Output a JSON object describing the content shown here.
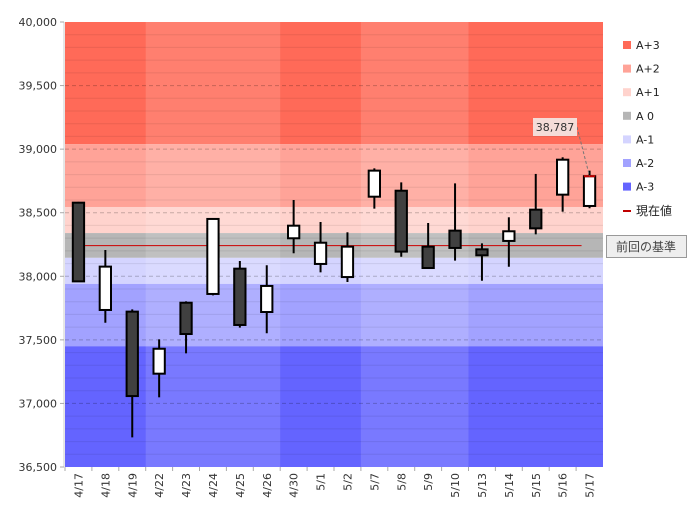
{
  "chart_data": {
    "type": "candlestick",
    "title": "",
    "xlabel": "",
    "ylabel": "",
    "ylim": [
      36500,
      40000
    ],
    "y_ticks": [
      36500,
      37000,
      37500,
      38000,
      38500,
      39000,
      39500,
      40000
    ],
    "y_tick_labels": [
      "36,500",
      "37,000",
      "37,500",
      "38,000",
      "38,500",
      "39,000",
      "39,500",
      "40,000"
    ],
    "grid": true,
    "categories": [
      "4/17",
      "4/18",
      "4/19",
      "4/22",
      "4/23",
      "4/24",
      "4/25",
      "4/26",
      "4/30",
      "5/1",
      "5/2",
      "5/7",
      "5/8",
      "5/9",
      "5/10",
      "5/13",
      "5/14",
      "5/15",
      "5/16",
      "5/17"
    ],
    "week_groups": [
      [
        0,
        2
      ],
      [
        3,
        7
      ],
      [
        8,
        10
      ],
      [
        11,
        14
      ],
      [
        15,
        19
      ]
    ],
    "ohlc": [
      {
        "o": 38579,
        "h": 38585,
        "l": 37955,
        "c": 37960
      },
      {
        "o": 37735,
        "h": 38207,
        "l": 37635,
        "c": 38076
      },
      {
        "o": 37722,
        "h": 37740,
        "l": 36733,
        "c": 37058
      },
      {
        "o": 37234,
        "h": 37504,
        "l": 37048,
        "c": 37430
      },
      {
        "o": 37792,
        "h": 37803,
        "l": 37394,
        "c": 37546
      },
      {
        "o": 37861,
        "h": 38455,
        "l": 37850,
        "c": 38451
      },
      {
        "o": 38060,
        "h": 38120,
        "l": 37596,
        "c": 37617
      },
      {
        "o": 37719,
        "h": 38087,
        "l": 37552,
        "c": 37924
      },
      {
        "o": 38299,
        "h": 38600,
        "l": 38181,
        "c": 38398
      },
      {
        "o": 38097,
        "h": 38427,
        "l": 38031,
        "c": 38264
      },
      {
        "o": 37994,
        "h": 38346,
        "l": 37955,
        "c": 38233
      },
      {
        "o": 38626,
        "h": 38849,
        "l": 38532,
        "c": 38831
      },
      {
        "o": 38673,
        "h": 38739,
        "l": 38154,
        "c": 38194
      },
      {
        "o": 38233,
        "h": 38419,
        "l": 38060,
        "c": 38065
      },
      {
        "o": 38359,
        "h": 38731,
        "l": 38123,
        "c": 38223
      },
      {
        "o": 38212,
        "h": 38259,
        "l": 37965,
        "c": 38165
      },
      {
        "o": 38278,
        "h": 38464,
        "l": 38075,
        "c": 38354
      },
      {
        "o": 38524,
        "h": 38805,
        "l": 38330,
        "c": 38377
      },
      {
        "o": 38642,
        "h": 38936,
        "l": 38508,
        "c": 38917
      },
      {
        "o": 38553,
        "h": 38831,
        "l": 38535,
        "c": 38787
      }
    ],
    "bands": [
      {
        "name": "A+3",
        "from": 39040,
        "to": 40000,
        "color": "#ff6a58"
      },
      {
        "name": "A+2",
        "from": 38545,
        "to": 39040,
        "color": "#ffa398"
      },
      {
        "name": "A+1",
        "from": 38340,
        "to": 38545,
        "color": "#ffd3cd"
      },
      {
        "name": "A 0",
        "from": 38145,
        "to": 38340,
        "color": "#b6b6b6"
      },
      {
        "name": "A-1",
        "from": 37940,
        "to": 38145,
        "color": "#d4d4ff"
      },
      {
        "name": "A-2",
        "from": 37450,
        "to": 37940,
        "color": "#a2a2ff"
      },
      {
        "name": "A-3",
        "from": 36500,
        "to": 37450,
        "color": "#6464ff"
      }
    ],
    "reference": {
      "value": 38241,
      "label": "前回の基準",
      "color": "#cc0000"
    },
    "current": {
      "value": 38787,
      "label": "38,787",
      "legend": "現在値",
      "color": "#c00000"
    },
    "legend_placement": "right"
  }
}
